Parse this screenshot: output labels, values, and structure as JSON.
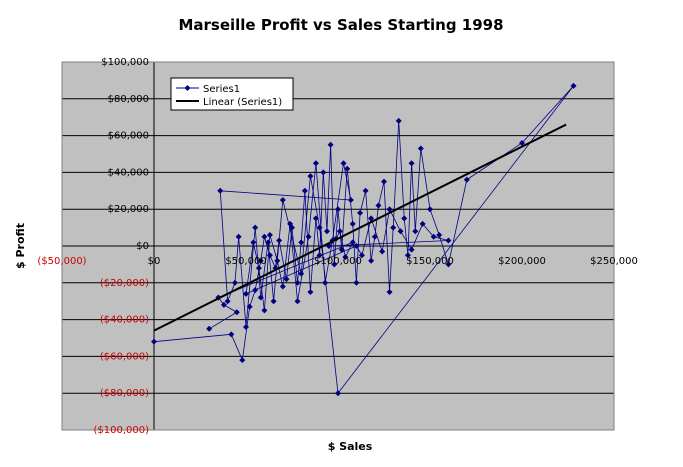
{
  "chart_data": {
    "type": "scatter",
    "title": "Marseille Profit vs Sales Starting 1998",
    "xlabel": "$ Sales",
    "ylabel": "$ Profit",
    "xlim": [
      -50000,
      250000
    ],
    "ylim": [
      -100000,
      100000
    ],
    "x_ticks": [
      {
        "value": -50000,
        "label": "($50,000)"
      },
      {
        "value": 0,
        "label": "$0"
      },
      {
        "value": 50000,
        "label": "$50,000"
      },
      {
        "value": 100000,
        "label": "$100,000"
      },
      {
        "value": 150000,
        "label": "$150,000"
      },
      {
        "value": 200000,
        "label": "$200,000"
      },
      {
        "value": 250000,
        "label": "$250,000"
      }
    ],
    "y_ticks": [
      {
        "value": 100000,
        "label": "$100,000"
      },
      {
        "value": 80000,
        "label": "$80,000"
      },
      {
        "value": 60000,
        "label": "$60,000"
      },
      {
        "value": 40000,
        "label": "$40,000"
      },
      {
        "value": 20000,
        "label": "$20,000"
      },
      {
        "value": 0,
        "label": "$0"
      },
      {
        "value": -20000,
        "label": "($20,000)"
      },
      {
        "value": -40000,
        "label": "($40,000)"
      },
      {
        "value": -60000,
        "label": "($60,000)"
      },
      {
        "value": -80000,
        "label": "($80,000)"
      },
      {
        "value": -100000,
        "label": "($100,000)"
      }
    ],
    "grid": "horizontal",
    "plot_background": "#c0c0c0",
    "negative_label_color": "#cc0000",
    "legend_position": "top-left",
    "series": [
      {
        "name": "Series1",
        "color": "#000080",
        "marker": "diamond",
        "connected": true,
        "points": [
          [
            0,
            -52000
          ],
          [
            42000,
            -48000
          ],
          [
            48000,
            -62000
          ],
          [
            52000,
            -33000
          ],
          [
            55000,
            -24000
          ],
          [
            58000,
            -8000
          ],
          [
            60000,
            5000
          ],
          [
            63000,
            -5000
          ],
          [
            66000,
            -12000
          ],
          [
            68000,
            3000
          ],
          [
            72000,
            -18000
          ],
          [
            75000,
            10000
          ],
          [
            78000,
            -20000
          ],
          [
            80000,
            2000
          ],
          [
            82000,
            30000
          ],
          [
            85000,
            -25000
          ],
          [
            88000,
            15000
          ],
          [
            90000,
            -5000
          ],
          [
            92000,
            40000
          ],
          [
            94000,
            8000
          ],
          [
            96000,
            55000
          ],
          [
            98000,
            -10000
          ],
          [
            100000,
            20000
          ],
          [
            102000,
            -2000
          ],
          [
            105000,
            42000
          ],
          [
            108000,
            12000
          ],
          [
            110000,
            -20000
          ],
          [
            112000,
            18000
          ],
          [
            115000,
            30000
          ],
          [
            118000,
            -8000
          ],
          [
            120000,
            5000
          ],
          [
            122000,
            22000
          ],
          [
            125000,
            35000
          ],
          [
            128000,
            -25000
          ],
          [
            130000,
            10000
          ],
          [
            133000,
            68000
          ],
          [
            136000,
            15000
          ],
          [
            138000,
            -5000
          ],
          [
            140000,
            45000
          ],
          [
            142000,
            8000
          ],
          [
            145000,
            53000
          ],
          [
            150000,
            20000
          ],
          [
            155000,
            6000
          ],
          [
            160000,
            -10000
          ],
          [
            170000,
            36000
          ],
          [
            200000,
            56000
          ],
          [
            228000,
            87000
          ],
          [
            100000,
            -80000
          ],
          [
            90000,
            10000
          ],
          [
            85000,
            38000
          ],
          [
            80000,
            -15000
          ],
          [
            70000,
            25000
          ],
          [
            65000,
            -30000
          ],
          [
            62000,
            2000
          ],
          [
            58000,
            -28000
          ],
          [
            55000,
            10000
          ],
          [
            50000,
            -44000
          ],
          [
            46000,
            5000
          ],
          [
            44000,
            -20000
          ],
          [
            40000,
            -30000
          ],
          [
            36000,
            30000
          ],
          [
            107000,
            25000
          ],
          [
            103000,
            45000
          ],
          [
            97000,
            3000
          ],
          [
            93000,
            -20000
          ],
          [
            88000,
            45000
          ],
          [
            84000,
            5000
          ],
          [
            78000,
            -30000
          ],
          [
            74000,
            12000
          ],
          [
            70000,
            -22000
          ],
          [
            67000,
            -8000
          ],
          [
            63000,
            6000
          ],
          [
            60000,
            -35000
          ],
          [
            57000,
            -12000
          ],
          [
            54000,
            2000
          ],
          [
            50000,
            -26000
          ],
          [
            110000,
            0
          ],
          [
            113000,
            -5000
          ],
          [
            118000,
            15000
          ],
          [
            124000,
            -3000
          ],
          [
            128000,
            20000
          ],
          [
            134000,
            8000
          ],
          [
            140000,
            -2000
          ],
          [
            146000,
            12000
          ],
          [
            152000,
            5000
          ],
          [
            160000,
            3000
          ],
          [
            95000,
            0
          ],
          [
            99000,
            4000
          ],
          [
            101000,
            8000
          ],
          [
            104000,
            -6000
          ],
          [
            108000,
            2000
          ],
          [
            35000,
            -28000
          ],
          [
            38000,
            -32000
          ],
          [
            45000,
            -36000
          ],
          [
            30000,
            -45000
          ]
        ]
      },
      {
        "name": "Linear (Series1)",
        "color": "#000000",
        "marker": "none",
        "points": [
          [
            0,
            -46000
          ],
          [
            224000,
            66000
          ]
        ]
      }
    ]
  }
}
